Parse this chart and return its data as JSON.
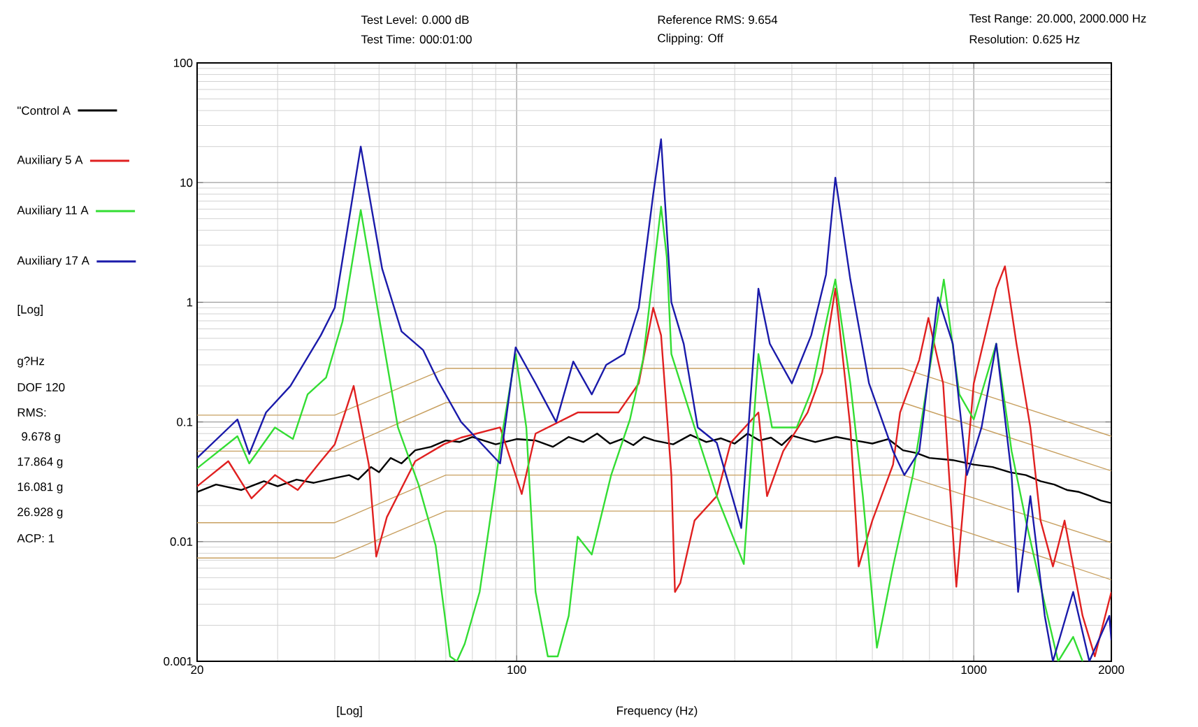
{
  "chart_data": {
    "type": "line",
    "xlabel": "Frequency (Hz)",
    "log": "xy",
    "grid": true,
    "legend": "left",
    "xlim": [
      20,
      2000
    ],
    "ylim": [
      0.001,
      100
    ],
    "xticks": [
      20,
      100,
      1000,
      2000
    ],
    "yticks": [
      0.001,
      0.01,
      0.1,
      1,
      10,
      100
    ],
    "annotations": [
      "Test Level:  0.000 dB",
      "Test Time: 000:01:00",
      "Reference RMS:  9.654",
      "Clipping: Off",
      "Test Range: 20.000, 2000.000 Hz",
      "Resolution:  0.625 Hz",
      "[Log]",
      "g?Hz",
      "DOF 120",
      "RMS:",
      "9.678 g",
      "17.864 g",
      "16.081 g",
      "26.928 g",
      "ACP: 1",
      "[Log]"
    ],
    "series": [
      {
        "color": "#c8a060",
        "x": [
          20,
          40,
          70,
          700,
          2000
        ],
        "values": [
          0.114,
          0.114,
          0.28,
          0.28,
          0.076
        ]
      },
      {
        "color": "#c8a060",
        "x": [
          20,
          40,
          70,
          700,
          2000
        ],
        "values": [
          0.057,
          0.057,
          0.145,
          0.145,
          0.039
        ]
      },
      {
        "color": "#c8a060",
        "x": [
          20,
          40,
          70,
          700,
          2000
        ],
        "values": [
          0.0144,
          0.0144,
          0.036,
          0.036,
          0.0098
        ]
      },
      {
        "color": "#c8a060",
        "x": [
          20,
          40,
          70,
          700,
          2000
        ],
        "values": [
          0.0073,
          0.0073,
          0.018,
          0.018,
          0.0048
        ]
      },
      {
        "name": "\"Control A",
        "color": "#000000",
        "x": [
          20,
          22,
          25,
          28,
          30,
          33,
          36,
          40,
          43,
          45,
          48,
          50,
          53,
          56,
          60,
          65,
          70,
          75,
          80,
          90,
          100,
          110,
          120,
          130,
          140,
          150,
          160,
          170,
          180,
          190,
          200,
          220,
          240,
          260,
          280,
          300,
          320,
          340,
          360,
          380,
          400,
          450,
          500,
          550,
          600,
          650,
          700,
          750,
          800,
          900,
          1000,
          1100,
          1200,
          1300,
          1400,
          1500,
          1600,
          1700,
          1800,
          1900,
          2000
        ],
        "values": [
          0.026,
          0.03,
          0.027,
          0.032,
          0.029,
          0.033,
          0.031,
          0.034,
          0.036,
          0.033,
          0.042,
          0.038,
          0.05,
          0.045,
          0.058,
          0.062,
          0.07,
          0.068,
          0.075,
          0.065,
          0.072,
          0.07,
          0.062,
          0.075,
          0.068,
          0.08,
          0.066,
          0.072,
          0.064,
          0.075,
          0.07,
          0.065,
          0.078,
          0.068,
          0.073,
          0.066,
          0.08,
          0.07,
          0.074,
          0.064,
          0.077,
          0.068,
          0.075,
          0.07,
          0.066,
          0.072,
          0.058,
          0.055,
          0.05,
          0.048,
          0.044,
          0.042,
          0.038,
          0.036,
          0.032,
          0.03,
          0.027,
          0.026,
          0.024,
          0.022,
          0.021
        ]
      },
      {
        "name": "Auxiliary 5 A",
        "color": "#e02020",
        "x": [
          20,
          23.4,
          26.3,
          29.6,
          33.2,
          37.3,
          40,
          44,
          47.5,
          49.3,
          52,
          60,
          69.3,
          75.6,
          92,
          102.6,
          110,
          136,
          167,
          185,
          199,
          207,
          218,
          222,
          228,
          245,
          274,
          294,
          338,
          353,
          383,
          433,
          466,
          498,
          537,
          560,
          600,
          666,
          690,
          760,
          796,
          857,
          916,
          1000,
          1120,
          1170,
          1240,
          1330,
          1400,
          1490,
          1580,
          1730,
          1840,
          2000
        ],
        "values": [
          0.029,
          0.047,
          0.023,
          0.036,
          0.027,
          0.047,
          0.065,
          0.2,
          0.044,
          0.0075,
          0.016,
          0.047,
          0.065,
          0.074,
          0.09,
          0.025,
          0.08,
          0.12,
          0.12,
          0.21,
          0.9,
          0.53,
          0.036,
          0.0038,
          0.0045,
          0.015,
          0.024,
          0.067,
          0.12,
          0.024,
          0.057,
          0.12,
          0.26,
          1.3,
          0.09,
          0.0062,
          0.015,
          0.044,
          0.12,
          0.33,
          0.74,
          0.21,
          0.0042,
          0.21,
          1.3,
          2.0,
          0.45,
          0.09,
          0.015,
          0.0062,
          0.015,
          0.0024,
          0.0011,
          0.0038
        ]
      },
      {
        "name": "Auxiliary 11 A",
        "color": "#33dd33",
        "x": [
          20,
          24.5,
          26,
          29.6,
          32.4,
          34.9,
          38.3,
          41.6,
          45.6,
          50,
          55,
          61,
          66.5,
          71.5,
          74,
          77,
          83,
          89,
          93,
          99.5,
          105,
          110,
          117,
          123,
          130,
          136,
          146,
          161,
          177,
          189,
          207,
          213,
          218,
          245,
          274,
          314,
          338,
          362,
          410,
          441,
          498,
          537,
          572,
          614,
          666,
          736,
          860,
          930,
          1000,
          1120,
          1210,
          1300,
          1430,
          1530,
          1650,
          1730
        ],
        "values": [
          0.041,
          0.076,
          0.045,
          0.09,
          0.072,
          0.17,
          0.235,
          0.69,
          5.9,
          0.75,
          0.09,
          0.03,
          0.0093,
          0.0011,
          0.001,
          0.0014,
          0.0038,
          0.024,
          0.08,
          0.37,
          0.09,
          0.0038,
          0.0011,
          0.0011,
          0.0024,
          0.011,
          0.0078,
          0.036,
          0.105,
          0.33,
          6.3,
          2.4,
          0.37,
          0.09,
          0.024,
          0.0065,
          0.37,
          0.09,
          0.09,
          0.18,
          1.55,
          0.21,
          0.024,
          0.0013,
          0.0062,
          0.036,
          1.55,
          0.17,
          0.105,
          0.45,
          0.057,
          0.015,
          0.003,
          0.001,
          0.0016,
          0.001
        ]
      },
      {
        "name": "Auxiliary 17 A",
        "color": "#1a1aaa",
        "x": [
          20,
          24.5,
          26,
          28.3,
          32,
          37.3,
          40,
          45.6,
          50.8,
          56,
          62.4,
          67.3,
          75.6,
          92,
          99.5,
          110,
          122,
          133,
          146,
          157,
          172,
          185,
          199,
          207,
          218,
          232,
          249,
          274,
          310,
          338,
          358,
          400,
          441,
          475,
          498,
          537,
          590,
          666,
          705,
          760,
          835,
          900,
          966,
          1040,
          1120,
          1210,
          1250,
          1330,
          1430,
          1490,
          1650,
          1790,
          1980,
          2000
        ],
        "values": [
          0.05,
          0.105,
          0.054,
          0.12,
          0.2,
          0.53,
          0.9,
          20,
          1.9,
          0.57,
          0.4,
          0.22,
          0.1,
          0.045,
          0.42,
          0.21,
          0.1,
          0.32,
          0.17,
          0.3,
          0.37,
          0.9,
          8,
          23,
          1.0,
          0.45,
          0.09,
          0.067,
          0.013,
          1.3,
          0.45,
          0.21,
          0.53,
          1.7,
          11,
          1.55,
          0.21,
          0.057,
          0.036,
          0.057,
          1.1,
          0.45,
          0.036,
          0.09,
          0.45,
          0.036,
          0.0038,
          0.024,
          0.0024,
          0.001,
          0.0038,
          0.001,
          0.0024,
          0.0015
        ]
      }
    ]
  }
}
